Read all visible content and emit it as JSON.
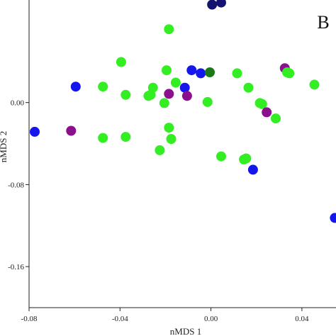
{
  "chart_data": {
    "type": "scatter",
    "panel_label": "B",
    "xlabel": "nMDS 1",
    "ylabel": "nMDS 2",
    "xlim": [
      -0.08,
      0.055
    ],
    "ylim": [
      -0.2,
      0.1
    ],
    "xticks": [
      {
        "value": -0.08,
        "label": "-0.08"
      },
      {
        "value": -0.04,
        "label": "-0.04"
      },
      {
        "value": 0.0,
        "label": "0.00"
      },
      {
        "value": 0.04,
        "label": "0.04"
      }
    ],
    "yticks": [
      {
        "value": 0.0,
        "label": "0.00"
      },
      {
        "value": -0.08,
        "label": "-0.08"
      },
      {
        "value": -0.16,
        "label": "-0.16"
      }
    ],
    "grid": false,
    "colors": {
      "green": "#33ee22",
      "blue": "#1515ee",
      "purple": "#8a108e",
      "navy": "#141470",
      "darkgreen": "#1a7a1a"
    },
    "points": [
      {
        "x": 0.0005,
        "y": 0.0955,
        "color": "navy"
      },
      {
        "x": 0.0045,
        "y": 0.0975,
        "color": "navy"
      },
      {
        "x": -0.0185,
        "y": 0.0715,
        "color": "green"
      },
      {
        "x": -0.0395,
        "y": 0.0395,
        "color": "green"
      },
      {
        "x": -0.0195,
        "y": 0.0315,
        "color": "green"
      },
      {
        "x": -0.0085,
        "y": 0.0315,
        "color": "blue"
      },
      {
        "x": -0.0045,
        "y": 0.0285,
        "color": "blue"
      },
      {
        "x": -0.0005,
        "y": 0.0295,
        "color": "darkgreen"
      },
      {
        "x": 0.0115,
        "y": 0.0285,
        "color": "green"
      },
      {
        "x": 0.0325,
        "y": 0.0335,
        "color": "purple"
      },
      {
        "x": 0.0335,
        "y": 0.0295,
        "color": "green"
      },
      {
        "x": 0.0345,
        "y": 0.0285,
        "color": "green"
      },
      {
        "x": 0.0455,
        "y": 0.0175,
        "color": "green"
      },
      {
        "x": -0.0595,
        "y": 0.0155,
        "color": "blue"
      },
      {
        "x": -0.0475,
        "y": 0.0155,
        "color": "green"
      },
      {
        "x": -0.0255,
        "y": 0.0145,
        "color": "green"
      },
      {
        "x": -0.0155,
        "y": 0.0195,
        "color": "green"
      },
      {
        "x": -0.0115,
        "y": 0.0145,
        "color": "blue"
      },
      {
        "x": 0.0165,
        "y": 0.0145,
        "color": "green"
      },
      {
        "x": -0.0265,
        "y": 0.0075,
        "color": "green"
      },
      {
        "x": -0.0275,
        "y": 0.0065,
        "color": "green"
      },
      {
        "x": -0.0375,
        "y": 0.0075,
        "color": "green"
      },
      {
        "x": -0.0185,
        "y": 0.0085,
        "color": "purple"
      },
      {
        "x": -0.0105,
        "y": 0.0065,
        "color": "purple"
      },
      {
        "x": -0.0205,
        "y": -0.0005,
        "color": "green"
      },
      {
        "x": -0.0015,
        "y": 0.0005,
        "color": "green"
      },
      {
        "x": 0.0215,
        "y": -0.0005,
        "color": "green"
      },
      {
        "x": 0.0225,
        "y": -0.0015,
        "color": "green"
      },
      {
        "x": 0.0245,
        "y": -0.0095,
        "color": "purple"
      },
      {
        "x": 0.0285,
        "y": -0.0155,
        "color": "green"
      },
      {
        "x": -0.0775,
        "y": -0.0285,
        "color": "blue"
      },
      {
        "x": -0.0615,
        "y": -0.0275,
        "color": "purple"
      },
      {
        "x": -0.0475,
        "y": -0.0345,
        "color": "green"
      },
      {
        "x": -0.0375,
        "y": -0.0335,
        "color": "green"
      },
      {
        "x": -0.0185,
        "y": -0.0245,
        "color": "green"
      },
      {
        "x": -0.0175,
        "y": -0.0355,
        "color": "green"
      },
      {
        "x": -0.0225,
        "y": -0.0465,
        "color": "green"
      },
      {
        "x": 0.0045,
        "y": -0.0525,
        "color": "green"
      },
      {
        "x": 0.0145,
        "y": -0.0555,
        "color": "green"
      },
      {
        "x": 0.0155,
        "y": -0.0545,
        "color": "green"
      },
      {
        "x": 0.0185,
        "y": -0.0655,
        "color": "blue"
      },
      {
        "x": 0.0545,
        "y": -0.1125,
        "color": "blue"
      }
    ]
  }
}
